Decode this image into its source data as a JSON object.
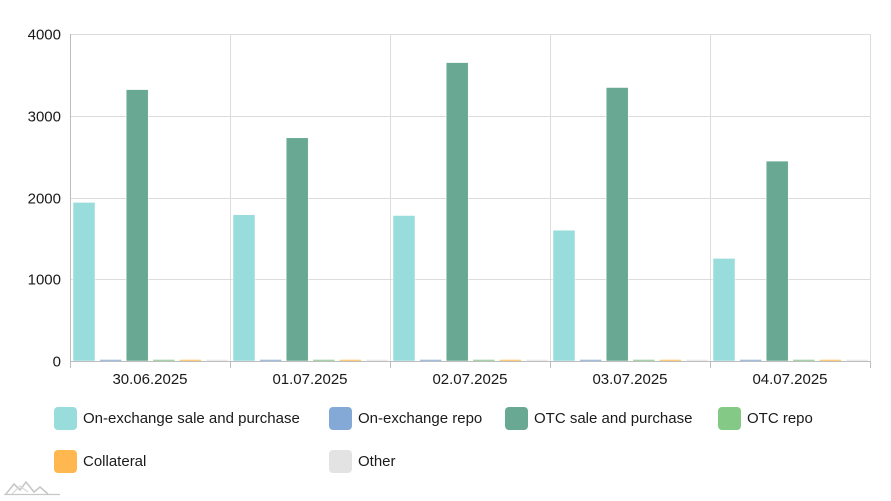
{
  "chart_data": {
    "type": "bar",
    "categories": [
      "30.06.2025",
      "01.07.2025",
      "02.07.2025",
      "03.07.2025",
      "04.07.2025"
    ],
    "series": [
      {
        "name": "On-exchange sale and purchase",
        "color": "#99dcdc",
        "values": [
          1940,
          1790,
          1780,
          1600,
          1255
        ]
      },
      {
        "name": "On-exchange repo",
        "color": "#84a9d6",
        "values": [
          18,
          8,
          15,
          7,
          7
        ]
      },
      {
        "name": "OTC sale and purchase",
        "color": "#69a892",
        "values": [
          3320,
          2730,
          3650,
          3345,
          2445
        ]
      },
      {
        "name": "OTC repo",
        "color": "#85c987",
        "values": [
          2,
          2,
          2,
          2,
          2
        ]
      },
      {
        "name": "Collateral",
        "color": "#ffb84f",
        "values": [
          1,
          1,
          1,
          1,
          1
        ]
      },
      {
        "name": "Other",
        "color": "#e3e3e3",
        "values": [
          0,
          0,
          0,
          0,
          0
        ]
      }
    ],
    "ylim": [
      0,
      4000
    ],
    "yticks": [
      0,
      1000,
      2000,
      3000,
      4000
    ],
    "grid": true,
    "legend_position": "bottom"
  }
}
